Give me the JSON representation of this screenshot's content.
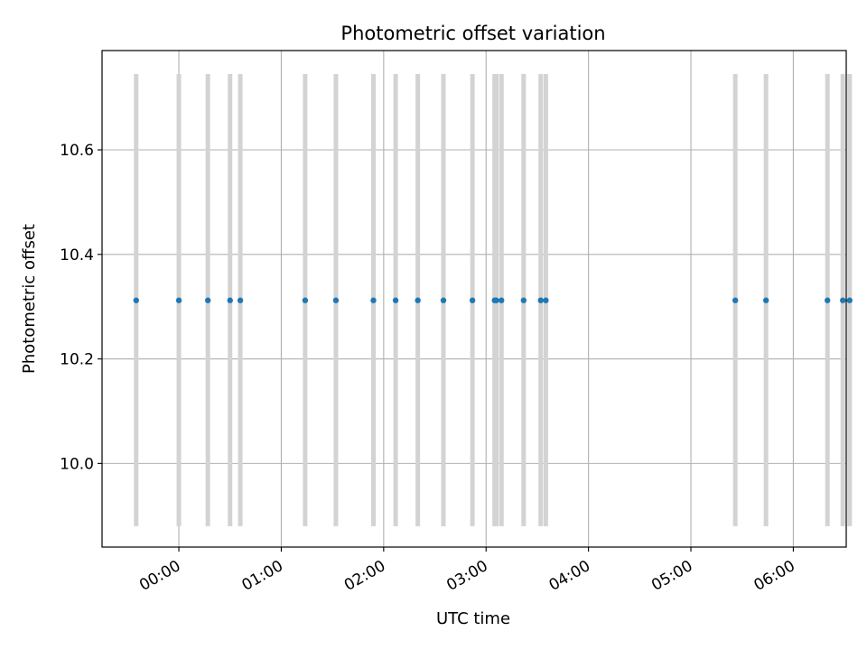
{
  "chart_data": {
    "type": "scatter",
    "title": "Photometric offset variation",
    "xlabel": "UTC time",
    "ylabel": "Photometric offset",
    "xlim": [
      "23:15",
      "06:31"
    ],
    "ylim": [
      9.84,
      10.79
    ],
    "x_ticks": [
      "00:00",
      "01:00",
      "02:00",
      "03:00",
      "04:00",
      "05:00",
      "06:00"
    ],
    "y_ticks": [
      "10.0",
      "10.2",
      "10.4",
      "10.6"
    ],
    "y_tick_values": [
      10.0,
      10.2,
      10.4,
      10.6
    ],
    "grid": true,
    "error_bar_low": 9.88,
    "error_bar_high": 10.745,
    "series": [
      {
        "times": [
          "23:35",
          "00:00",
          "00:17",
          "00:30",
          "00:36",
          "01:14",
          "01:32",
          "01:54",
          "02:07",
          "02:20",
          "02:35",
          "02:52",
          "03:05",
          "03:06",
          "03:09",
          "03:22",
          "03:32",
          "03:35",
          "05:26",
          "05:44",
          "06:20",
          "06:29",
          "06:33"
        ],
        "values": [
          10.312,
          10.312,
          10.312,
          10.312,
          10.312,
          10.312,
          10.312,
          10.312,
          10.312,
          10.312,
          10.312,
          10.312,
          10.312,
          10.312,
          10.312,
          10.312,
          10.312,
          10.312,
          10.312,
          10.312,
          10.312,
          10.312,
          10.312
        ],
        "color": "#1f77b4",
        "error_color": "#d3d3d3"
      }
    ]
  }
}
